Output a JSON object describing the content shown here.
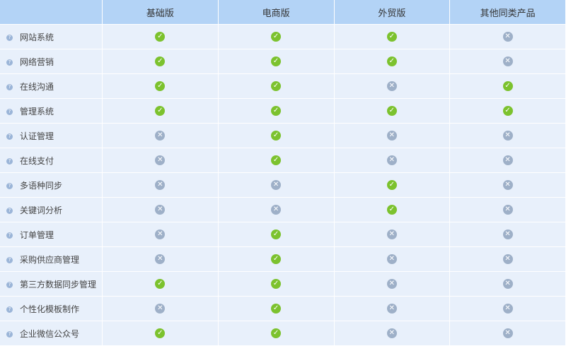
{
  "columns": [
    "",
    "基础版",
    "电商版",
    "外贸版",
    "其他同类产品"
  ],
  "colors": {
    "yes": "#7cc22e",
    "no": "#9eb0c8",
    "header": "#b3d3f6",
    "row": "#e8f0fb"
  },
  "rows": [
    {
      "feature": "网站系统",
      "values": [
        true,
        true,
        true,
        false
      ]
    },
    {
      "feature": "网络营销",
      "values": [
        true,
        true,
        true,
        false
      ]
    },
    {
      "feature": "在线沟通",
      "values": [
        true,
        true,
        false,
        true
      ]
    },
    {
      "feature": "管理系统",
      "values": [
        true,
        true,
        true,
        true
      ]
    },
    {
      "feature": "认证管理",
      "values": [
        false,
        true,
        false,
        false
      ]
    },
    {
      "feature": "在线支付",
      "values": [
        false,
        true,
        false,
        false
      ]
    },
    {
      "feature": "多语种同步",
      "values": [
        false,
        false,
        true,
        false
      ]
    },
    {
      "feature": "关键词分析",
      "values": [
        false,
        false,
        true,
        false
      ]
    },
    {
      "feature": "订单管理",
      "values": [
        false,
        true,
        false,
        false
      ]
    },
    {
      "feature": "采购供应商管理",
      "values": [
        false,
        true,
        false,
        false
      ]
    },
    {
      "feature": "第三方数据同步管理",
      "values": [
        true,
        true,
        false,
        false
      ]
    },
    {
      "feature": "个性化模板制作",
      "values": [
        false,
        true,
        false,
        false
      ]
    },
    {
      "feature": "企业微信公众号",
      "values": [
        true,
        true,
        false,
        false
      ]
    }
  ]
}
